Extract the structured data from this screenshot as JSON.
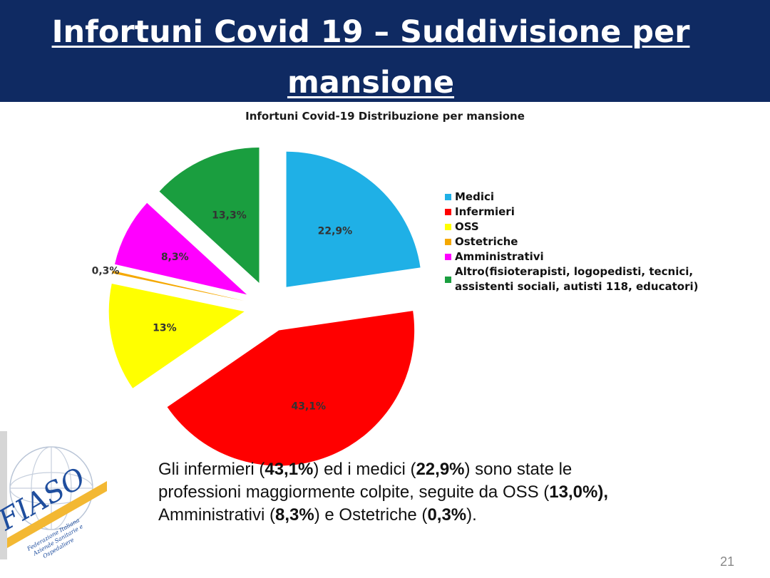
{
  "slide": {
    "title": "Infortuni Covid 19 – Suddivisione per mansione",
    "page_number": "21"
  },
  "chart_data": {
    "type": "pie",
    "title": "Infortuni Covid-19 Distribuzione per mansione",
    "slices": [
      {
        "name": "Medici",
        "value": 22.9,
        "label": "22,9%",
        "color": "#1fb0e6"
      },
      {
        "name": "Infermieri",
        "value": 43.1,
        "label": "43,1%",
        "color": "#ff0000"
      },
      {
        "name": "OSS",
        "value": 13.0,
        "label": "13%",
        "color": "#ffff00"
      },
      {
        "name": "Ostetriche",
        "value": 0.3,
        "label": "0,3%",
        "color": "#f5a800"
      },
      {
        "name": "Amministrativi",
        "value": 8.3,
        "label": "8,3%",
        "color": "#ff00ff"
      },
      {
        "name": "Altro(fisioterapisti, logopedisti, tecnici, assistenti sociali, autisti 118, educatori)",
        "value": 13.3,
        "label": "13,3%",
        "color": "#1a9e3f"
      }
    ],
    "legend_position": "right",
    "exploded": true
  },
  "caption": {
    "p1": "Gli infermieri (",
    "v1": "43,1%",
    "p2": ") ed i medici  (",
    "v2": "22,9%",
    "p3": ") sono state le professioni maggiormente colpite, seguite da OSS (",
    "v3": "13,0%),",
    "p4": "  Amministrativi (",
    "v4": "8,3%",
    "p5": ") e Ostetriche (",
    "v5": "0,3%",
    "p6": ")."
  },
  "logo": {
    "name": "FIASO",
    "subtitle": "Federazione Italiana Aziende Sanitarie e Ospedaliere"
  }
}
